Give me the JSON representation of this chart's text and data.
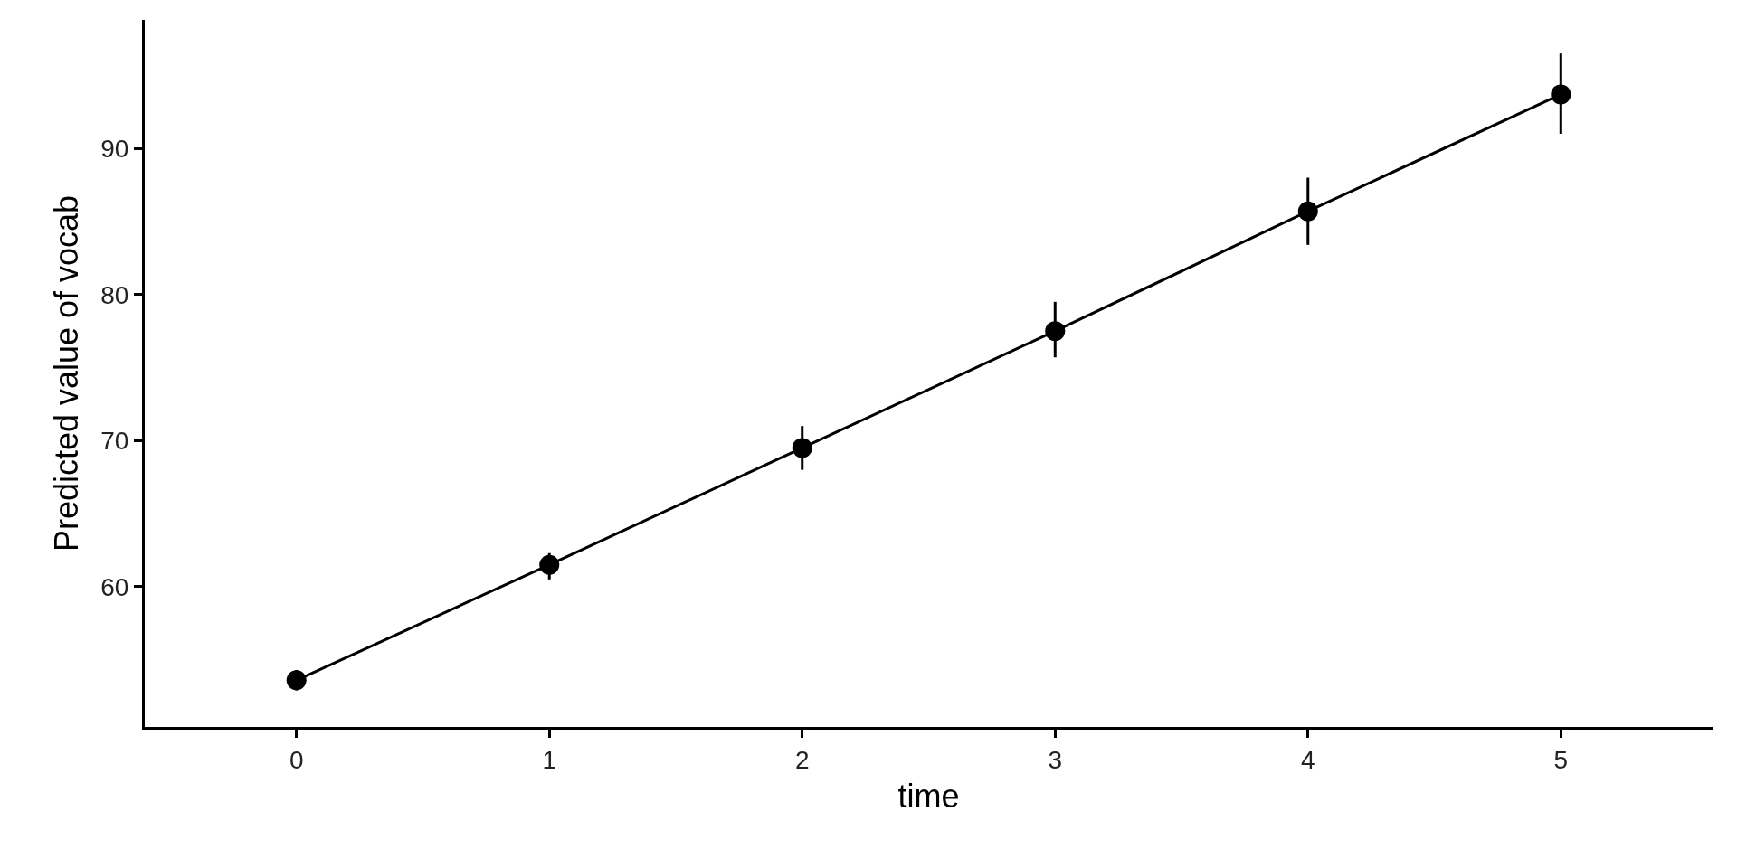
{
  "chart_data": {
    "type": "line",
    "xlabel": "time",
    "ylabel": "Predicted value of vocab",
    "x": [
      0,
      1,
      2,
      3,
      4,
      5
    ],
    "values": [
      53.6,
      61.5,
      69.5,
      77.5,
      85.7,
      93.7
    ],
    "errors": [
      [
        52.9,
        54.3
      ],
      [
        60.5,
        62.3
      ],
      [
        68,
        71
      ],
      [
        75.7,
        79.5
      ],
      [
        83.4,
        88
      ],
      [
        91,
        96.5
      ]
    ],
    "color": "#000000",
    "marker": "circle",
    "line_style": "solid",
    "xlim": [
      -0.6,
      5.6
    ],
    "xticks": [
      0,
      1,
      2,
      3,
      4,
      5
    ],
    "ylim": [
      50.4,
      98.8
    ],
    "yticks": [
      60,
      70,
      80,
      90
    ],
    "grid": false
  }
}
